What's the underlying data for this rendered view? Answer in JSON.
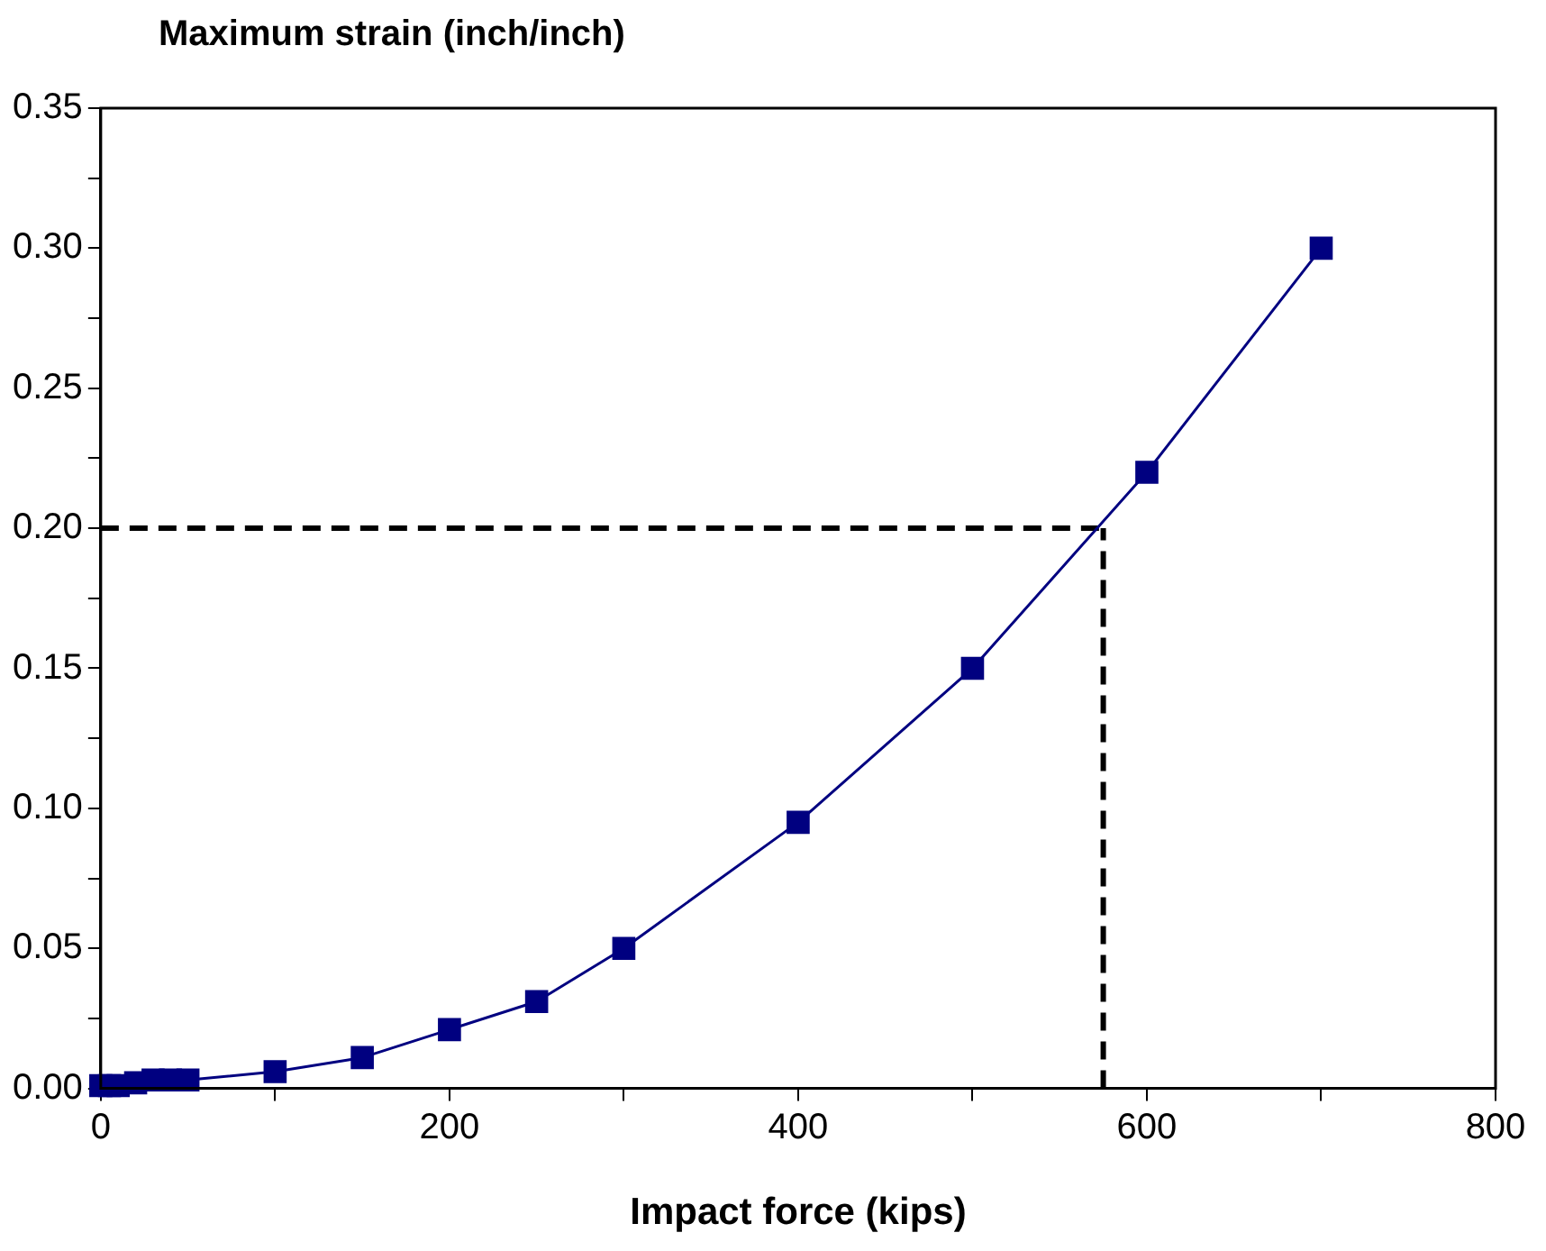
{
  "chart_data": {
    "type": "line",
    "xlabel": "Impact force (kips)",
    "ylabel": "Maximum strain (inch/inch)",
    "x": [
      0,
      5,
      10,
      20,
      30,
      40,
      50,
      100,
      150,
      200,
      250,
      300,
      400,
      500,
      600,
      700
    ],
    "series": [
      {
        "color": "#000080",
        "marker": "square",
        "values": [
          0.001,
          0.001,
          0.001,
          0.002,
          0.003,
          0.003,
          0.003,
          0.006,
          0.011,
          0.021,
          0.031,
          0.05,
          0.095,
          0.15,
          0.22,
          0.3
        ]
      }
    ],
    "ref_lines": [
      {
        "axis": "y",
        "value": 0.2,
        "color": "#000000",
        "line_style": "dashed"
      },
      {
        "axis": "x",
        "value": 575,
        "color": "#000000",
        "line_style": "dashed"
      }
    ],
    "xlim": [
      0,
      800
    ],
    "xticks": [
      0,
      {
        "value": 100,
        "label": null
      },
      200,
      {
        "value": 300,
        "label": null
      },
      400,
      {
        "value": 500,
        "label": null
      },
      600,
      {
        "value": 700,
        "label": null
      },
      800
    ],
    "ylim": [
      0,
      0.35
    ],
    "yticks": [
      {
        "value": 0,
        "label": "0.00"
      },
      {
        "value": 0.025,
        "label": null
      },
      {
        "value": 0.05,
        "label": "0.05"
      },
      {
        "value": 0.075,
        "label": null
      },
      {
        "value": 0.1,
        "label": "0.10"
      },
      {
        "value": 0.125,
        "label": null
      },
      {
        "value": 0.15,
        "label": "0.15"
      },
      {
        "value": 0.175,
        "label": null
      },
      {
        "value": 0.2,
        "label": "0.20"
      },
      {
        "value": 0.225,
        "label": null
      },
      {
        "value": 0.25,
        "label": "0.25"
      },
      {
        "value": 0.275,
        "label": null
      },
      {
        "value": 0.3,
        "label": "0.30"
      },
      {
        "value": 0.325,
        "label": null
      },
      {
        "value": 0.35,
        "label": "0.35"
      }
    ],
    "grid": false,
    "legend": false
  }
}
